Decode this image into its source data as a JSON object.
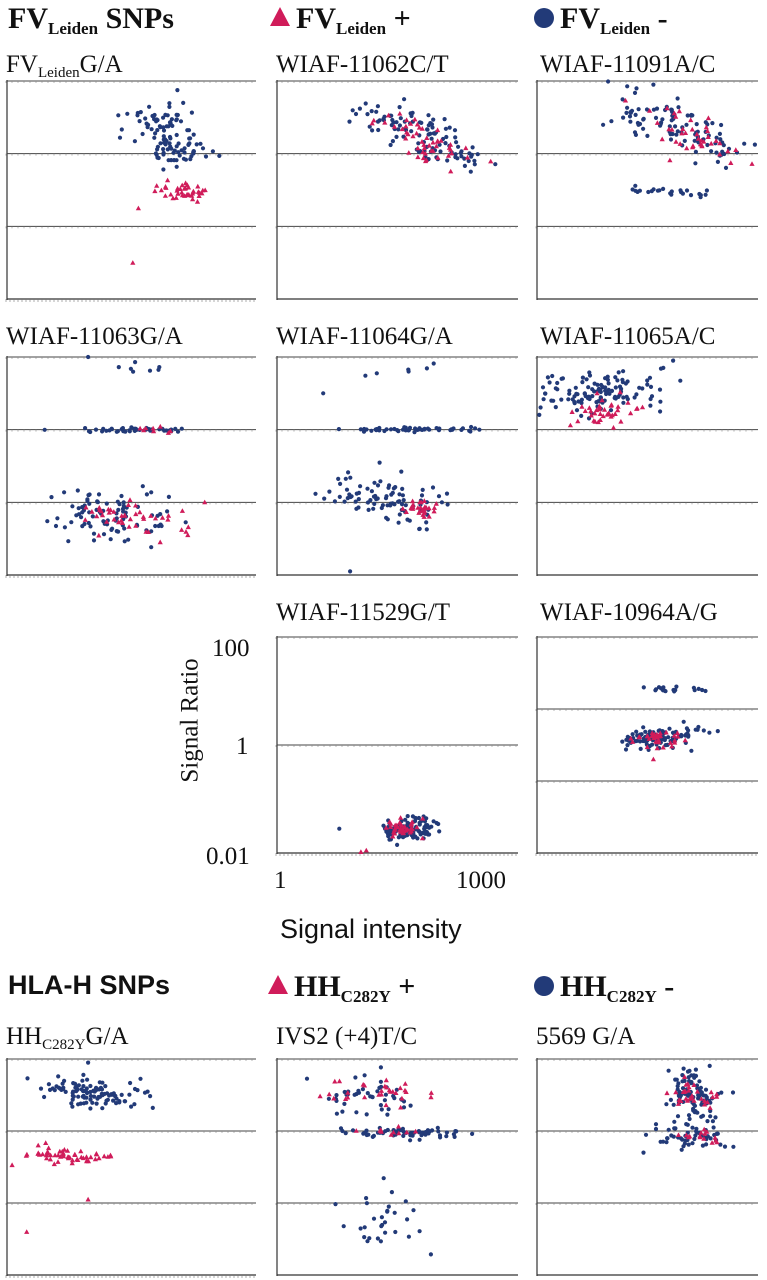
{
  "headers": {
    "fv_title": "FV",
    "fv_title_sub": "Leiden",
    "fv_title_tail": " SNPs",
    "fv_pos": "FV",
    "fv_pos_sub": "Leiden",
    "fv_pos_tail": " +",
    "fv_neg": "FV",
    "fv_neg_sub": "Leiden",
    "fv_neg_tail": " -",
    "hla_title": "HLA-H SNPs",
    "hh_pos": "HH",
    "hh_pos_sub": "C282Y",
    "hh_pos_tail": " +",
    "hh_neg": "HH",
    "hh_neg_sub": "C282Y",
    "hh_neg_tail": " -"
  },
  "legend_colors": {
    "positive": "#d01c5a",
    "negative": "#223a78"
  },
  "axis": {
    "ylabel": "Signal Ratio",
    "xlabel": "Signal intensity",
    "y_ticks": [
      "100",
      "1",
      "0.01"
    ],
    "x_ticks": [
      "1",
      "1000"
    ]
  },
  "chart_data": [
    {
      "type": "scatter",
      "title_pre": "FV",
      "title_sub": "Leiden",
      "title_post": "G/A",
      "xscale": "log",
      "yscale": "log",
      "ylim": [
        0.0001,
        100
      ],
      "clusters": [
        {
          "series": "negative",
          "x_center": [
            2.5,
            3.1
          ],
          "y_center": [
            1.2,
            -0.2
          ],
          "count": 110,
          "spread": [
            0.8,
            0.55
          ],
          "outliers": [
            [
              3.0,
              1.75
            ]
          ]
        },
        {
          "series": "positive",
          "x_center": [
            2.85,
            3.4
          ],
          "y_center": [
            -0.9,
            -1.2
          ],
          "count": 40,
          "spread": [
            0.6,
            0.3
          ],
          "outliers": [
            [
              2.2,
              -3.0
            ],
            [
              2.3,
              -1.5
            ]
          ]
        }
      ]
    },
    {
      "type": "scatter",
      "title_pre": "WIAF-11062C/T",
      "title_sub": "",
      "title_post": "",
      "xscale": "log",
      "yscale": "log",
      "ylim": [
        0.0001,
        100
      ],
      "clusters": [
        {
          "series": "negative",
          "x_center": [
            1.85,
            3.45
          ],
          "y_center": [
            1.2,
            -0.1
          ],
          "count": 110,
          "spread": [
            1.0,
            0.55
          ],
          "outliers": [
            [
              2.3,
              1.5
            ]
          ]
        },
        {
          "series": "positive",
          "x_center": [
            2.2,
            3.2
          ],
          "y_center": [
            1.0,
            -0.2
          ],
          "count": 50,
          "spread": [
            0.8,
            0.4
          ],
          "outliers": []
        }
      ]
    },
    {
      "type": "scatter",
      "title_pre": "WIAF-11091A/C",
      "title_sub": "",
      "title_post": "",
      "xscale": "log",
      "yscale": "log",
      "ylim": [
        0.0001,
        100
      ],
      "clusters": [
        {
          "series": "negative",
          "x_center": [
            1.7,
            3.8
          ],
          "y_center": [
            1.5,
            0.0
          ],
          "count": 100,
          "spread": [
            1.1,
            0.6
          ],
          "outliers": [
            [
              2.3,
              1.9
            ]
          ]
        },
        {
          "series": "positive",
          "x_center": [
            2.4,
            3.6
          ],
          "y_center": [
            1.2,
            -0.1
          ],
          "count": 40,
          "spread": [
            0.8,
            0.4
          ],
          "outliers": []
        },
        {
          "series": "negative",
          "x_center": [
            2.2,
            3.5
          ],
          "y_center": [
            -1.0,
            -1.1
          ],
          "count": 25,
          "spread": [
            0.8,
            0.15
          ],
          "outliers": []
        }
      ]
    },
    {
      "type": "scatter",
      "title_pre": "WIAF-11063G/A",
      "title_sub": "",
      "title_post": "",
      "xscale": "log",
      "yscale": "log",
      "ylim": [
        0.0001,
        100
      ],
      "clusters": [
        {
          "series": "negative",
          "x_center": [
            2.0,
            2.6
          ],
          "y_center": [
            1.8,
            1.6
          ],
          "count": 7,
          "spread": [
            0.7,
            0.2
          ],
          "outliers": [
            [
              1.4,
              2.0
            ]
          ]
        },
        {
          "series": "negative",
          "x_center": [
            1.4,
            3.1
          ],
          "y_center": [
            0.0,
            0.0
          ],
          "count": 45,
          "spread": [
            1.0,
            0.1
          ],
          "outliers": []
        },
        {
          "series": "positive",
          "x_center": [
            2.3,
            3.0
          ],
          "y_center": [
            0.0,
            0.0
          ],
          "count": 8,
          "spread": [
            0.5,
            0.1
          ],
          "outliers": []
        },
        {
          "series": "negative",
          "x_center": [
            1.2,
            2.4
          ],
          "y_center": [
            -2.0,
            -2.6
          ],
          "count": 90,
          "spread": [
            1.1,
            1.0
          ],
          "outliers": []
        },
        {
          "series": "positive",
          "x_center": [
            1.4,
            2.9
          ],
          "y_center": [
            -2.2,
            -2.6
          ],
          "count": 45,
          "spread": [
            1.0,
            0.8
          ],
          "outliers": []
        }
      ]
    },
    {
      "type": "scatter",
      "title_pre": "WIAF-11064G/A",
      "title_sub": "",
      "title_post": "",
      "xscale": "log",
      "yscale": "log",
      "ylim": [
        0.0001,
        100
      ],
      "clusters": [
        {
          "series": "negative",
          "x_center": [
            1.7,
            2.9
          ],
          "y_center": [
            1.5,
            1.8
          ],
          "count": 6,
          "spread": [
            0.5,
            0.3
          ],
          "outliers": [
            [
              0.8,
              1.0
            ]
          ]
        },
        {
          "series": "negative",
          "x_center": [
            1.5,
            3.3
          ],
          "y_center": [
            0.0,
            0.0
          ],
          "count": 50,
          "spread": [
            1.0,
            0.1
          ],
          "outliers": []
        },
        {
          "series": "negative",
          "x_center": [
            1.2,
            2.6
          ],
          "y_center": [
            -1.6,
            -2.2
          ],
          "count": 90,
          "spread": [
            0.8,
            0.8
          ],
          "outliers": [
            [
              1.3,
              -3.9
            ]
          ]
        },
        {
          "series": "positive",
          "x_center": [
            2.5,
            2.7
          ],
          "y_center": [
            -2.1,
            -2.2
          ],
          "count": 30,
          "spread": [
            0.4,
            0.3
          ],
          "outliers": []
        }
      ]
    },
    {
      "type": "scatter",
      "title_pre": "WIAF-11065A/C",
      "title_sub": "",
      "title_post": "",
      "xscale": "log",
      "yscale": "log",
      "ylim": [
        0.0001,
        100
      ],
      "clusters": [
        {
          "series": "negative",
          "x_center": [
            0.4,
            2.0
          ],
          "y_center": [
            0.8,
            1.2
          ],
          "count": 120,
          "spread": [
            1.3,
            0.8
          ],
          "outliers": [
            [
              2.7,
              1.9
            ],
            [
              2.5,
              1.7
            ]
          ]
        },
        {
          "series": "positive",
          "x_center": [
            0.9,
            1.6
          ],
          "y_center": [
            0.4,
            0.6
          ],
          "count": 40,
          "spread": [
            0.9,
            0.5
          ],
          "outliers": []
        }
      ]
    },
    {
      "type": "scatter",
      "title_pre": "WIAF-11529G/T",
      "title_sub": "",
      "title_post": "",
      "xscale": "log",
      "yscale": "log",
      "xlim": [
        1,
        1000
      ],
      "ylim": [
        0.01,
        100
      ],
      "clusters": [
        {
          "series": "negative",
          "x_center": [
            2.1,
            2.6
          ],
          "y_center": [
            -1.6,
            -1.5
          ],
          "count": 110,
          "spread": [
            0.5,
            0.3
          ],
          "outliers": [
            [
              1.1,
              -1.55
            ],
            [
              2.95,
              -1.6
            ]
          ]
        },
        {
          "series": "positive",
          "x_center": [
            2.15,
            2.4
          ],
          "y_center": [
            -1.6,
            -1.5
          ],
          "count": 40,
          "spread": [
            0.4,
            0.25
          ],
          "outliers": [
            [
              1.5,
              -1.98
            ],
            [
              1.6,
              -1.95
            ]
          ]
        }
      ]
    },
    {
      "type": "scatter",
      "title_pre": "WIAF-10964A/G",
      "title_sub": "",
      "title_post": "",
      "xscale": "log",
      "yscale": "log",
      "ylim": [
        0.0001,
        100
      ],
      "clusters": [
        {
          "series": "negative",
          "x_center": [
            2.2,
            2.9
          ],
          "y_center": [
            0.6,
            0.5
          ],
          "count": 18,
          "spread": [
            0.8,
            0.15
          ],
          "outliers": []
        },
        {
          "series": "negative",
          "x_center": [
            2.1,
            2.8
          ],
          "y_center": [
            -0.9,
            -0.7
          ],
          "count": 110,
          "spread": [
            0.8,
            0.4
          ],
          "outliers": []
        },
        {
          "series": "positive",
          "x_center": [
            2.2,
            2.6
          ],
          "y_center": [
            -0.9,
            -0.8
          ],
          "count": 35,
          "spread": [
            0.6,
            0.4
          ],
          "outliers": []
        }
      ]
    },
    {
      "type": "scatter",
      "title_pre": "HH",
      "title_sub": "C282Y",
      "title_post": "G/A",
      "xscale": "log",
      "yscale": "log",
      "ylim": [
        0.0001,
        100
      ],
      "clusters": [
        {
          "series": "negative",
          "x_center": [
            0.9,
            1.9
          ],
          "y_center": [
            1.2,
            0.9
          ],
          "count": 110,
          "spread": [
            1.1,
            0.55
          ],
          "outliers": [
            [
              1.4,
              1.9
            ]
          ]
        },
        {
          "series": "positive",
          "x_center": [
            0.5,
            1.6
          ],
          "y_center": [
            -0.6,
            -0.7
          ],
          "count": 55,
          "spread": [
            1.1,
            0.35
          ],
          "outliers": [
            [
              0.3,
              -2.8
            ],
            [
              1.4,
              -1.9
            ]
          ]
        }
      ]
    },
    {
      "type": "scatter",
      "title_pre": "IVS2 (+4)T/C",
      "title_sub": "",
      "title_post": "",
      "xscale": "log",
      "yscale": "log",
      "ylim": [
        0.0001,
        100
      ],
      "clusters": [
        {
          "series": "negative",
          "x_center": [
            1.2,
            2.2
          ],
          "y_center": [
            1.2,
            0.8
          ],
          "count": 45,
          "spread": [
            1.0,
            0.7
          ],
          "outliers": []
        },
        {
          "series": "positive",
          "x_center": [
            1.3,
            2.3
          ],
          "y_center": [
            1.2,
            0.9
          ],
          "count": 30,
          "spread": [
            1.0,
            0.6
          ],
          "outliers": []
        },
        {
          "series": "negative",
          "x_center": [
            1.5,
            2.8
          ],
          "y_center": [
            0.0,
            -0.1
          ],
          "count": 60,
          "spread": [
            1.2,
            0.2
          ],
          "outliers": []
        },
        {
          "series": "positive",
          "x_center": [
            1.8,
            2.5
          ],
          "y_center": [
            0.0,
            0.0
          ],
          "count": 10,
          "spread": [
            0.8,
            0.15
          ],
          "outliers": []
        },
        {
          "series": "negative",
          "x_center": [
            1.6,
            2.2
          ],
          "y_center": [
            -2.0,
            -3.0
          ],
          "count": 30,
          "spread": [
            0.9,
            1.2
          ],
          "outliers": []
        }
      ]
    },
    {
      "type": "scatter",
      "title_pre": "5569 G/A",
      "title_sub": "",
      "title_post": "",
      "xscale": "log",
      "yscale": "log",
      "ylim": [
        0.0001,
        100
      ],
      "clusters": [
        {
          "series": "negative",
          "x_center": [
            2.9,
            3.3
          ],
          "y_center": [
            1.4,
            0.6
          ],
          "count": 110,
          "spread": [
            0.6,
            1.2
          ],
          "outliers": []
        },
        {
          "series": "positive",
          "x_center": [
            2.9,
            3.4
          ],
          "y_center": [
            1.2,
            0.9
          ],
          "count": 30,
          "spread": [
            0.6,
            0.6
          ],
          "outliers": []
        },
        {
          "series": "negative",
          "x_center": [
            2.4,
            3.6
          ],
          "y_center": [
            -0.1,
            -0.3
          ],
          "count": 45,
          "spread": [
            1.0,
            0.4
          ],
          "outliers": [
            [
              2.1,
              -0.6
            ]
          ]
        },
        {
          "series": "positive",
          "x_center": [
            2.9,
            3.6
          ],
          "y_center": [
            -0.1,
            -0.2
          ],
          "count": 15,
          "spread": [
            0.6,
            0.3
          ],
          "outliers": []
        }
      ]
    }
  ]
}
